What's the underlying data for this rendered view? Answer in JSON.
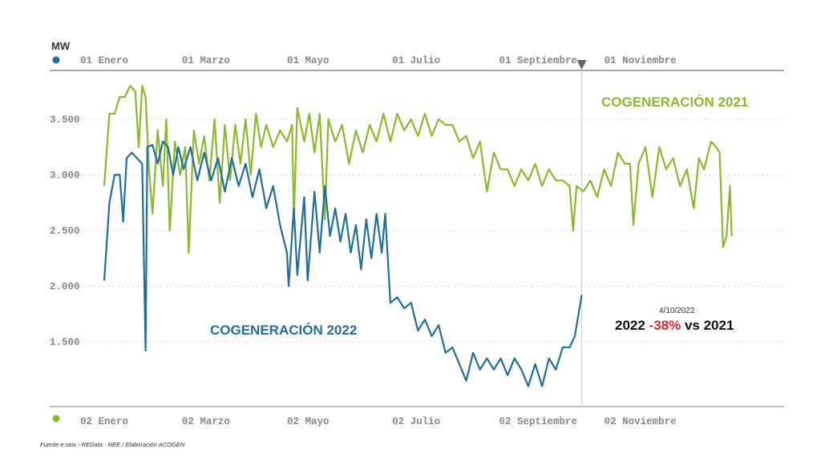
{
  "chart_data": {
    "type": "line",
    "ylabel": "MW",
    "ylim": [
      1000,
      3900
    ],
    "yticks": [
      1500,
      2000,
      2500,
      3000,
      3500
    ],
    "ytick_labels": [
      "1.500",
      "2.000",
      "2.500",
      "3.000",
      "3.500"
    ],
    "grid": true,
    "top_axis": {
      "series_color": "#1f6e9c",
      "tick_labels": [
        "01 Enero",
        "01 Marzo",
        "01 Mayo",
        "01 Julio",
        "01 Septiembre",
        "01 Noviembre"
      ],
      "tick_days": [
        0,
        59,
        120,
        181,
        243,
        304
      ]
    },
    "bottom_axis": {
      "series_color": "#8cb82b",
      "tick_labels": [
        "02 Enero",
        "02 Marzo",
        "02 Mayo",
        "02 Julio",
        "02 Septiembre",
        "02 Noviembre"
      ],
      "tick_days": [
        0,
        59,
        120,
        181,
        243,
        304
      ]
    },
    "marker": {
      "day": 277,
      "date": "4/10/2022",
      "text_before": "2022 ",
      "text_highlight": "-38%",
      "text_after": " vs 2021",
      "highlight_color": "#e0272d"
    },
    "series": [
      {
        "name": "COGENERACIÓN 2021",
        "color": "#8cb82b",
        "points": [
          [
            0,
            2900
          ],
          [
            3,
            3550
          ],
          [
            6,
            3550
          ],
          [
            9,
            3700
          ],
          [
            12,
            3700
          ],
          [
            15,
            3800
          ],
          [
            18,
            3750
          ],
          [
            20,
            3250
          ],
          [
            22,
            3800
          ],
          [
            24,
            3700
          ],
          [
            26,
            3050
          ],
          [
            28,
            2650
          ],
          [
            31,
            3400
          ],
          [
            34,
            2900
          ],
          [
            36,
            3500
          ],
          [
            38,
            2500
          ],
          [
            41,
            3300
          ],
          [
            44,
            3000
          ],
          [
            47,
            3250
          ],
          [
            49,
            2300
          ],
          [
            52,
            3400
          ],
          [
            55,
            3100
          ],
          [
            58,
            3350
          ],
          [
            61,
            2950
          ],
          [
            64,
            3500
          ],
          [
            67,
            2750
          ],
          [
            70,
            3450
          ],
          [
            73,
            2950
          ],
          [
            76,
            3450
          ],
          [
            79,
            3100
          ],
          [
            82,
            3500
          ],
          [
            85,
            3000
          ],
          [
            88,
            3550
          ],
          [
            91,
            3250
          ],
          [
            94,
            3450
          ],
          [
            98,
            3250
          ],
          [
            102,
            3400
          ],
          [
            106,
            3300
          ],
          [
            109,
            3450
          ],
          [
            110,
            2600
          ],
          [
            112,
            3600
          ],
          [
            116,
            3300
          ],
          [
            119,
            3550
          ],
          [
            122,
            3200
          ],
          [
            125,
            3550
          ],
          [
            128,
            2600
          ],
          [
            130,
            3500
          ],
          [
            134,
            3300
          ],
          [
            138,
            3450
          ],
          [
            142,
            3100
          ],
          [
            146,
            3400
          ],
          [
            150,
            3200
          ],
          [
            154,
            3450
          ],
          [
            158,
            3300
          ],
          [
            162,
            3550
          ],
          [
            166,
            3300
          ],
          [
            170,
            3550
          ],
          [
            174,
            3400
          ],
          [
            178,
            3500
          ],
          [
            182,
            3350
          ],
          [
            186,
            3550
          ],
          [
            190,
            3350
          ],
          [
            194,
            3500
          ],
          [
            198,
            3450
          ],
          [
            202,
            3450
          ],
          [
            206,
            3300
          ],
          [
            210,
            3350
          ],
          [
            214,
            3150
          ],
          [
            218,
            3300
          ],
          [
            222,
            2850
          ],
          [
            226,
            3200
          ],
          [
            230,
            3050
          ],
          [
            234,
            3050
          ],
          [
            238,
            2900
          ],
          [
            242,
            3050
          ],
          [
            246,
            2950
          ],
          [
            250,
            3100
          ],
          [
            254,
            2900
          ],
          [
            258,
            3050
          ],
          [
            262,
            2950
          ],
          [
            266,
            2950
          ],
          [
            270,
            2900
          ],
          [
            272,
            2500
          ],
          [
            274,
            2900
          ],
          [
            278,
            2850
          ],
          [
            282,
            2950
          ],
          [
            286,
            2800
          ],
          [
            290,
            3050
          ],
          [
            294,
            2900
          ],
          [
            298,
            3200
          ],
          [
            302,
            3100
          ],
          [
            305,
            3100
          ],
          [
            307,
            2550
          ],
          [
            310,
            3100
          ],
          [
            314,
            3250
          ],
          [
            318,
            2800
          ],
          [
            322,
            3250
          ],
          [
            326,
            3050
          ],
          [
            330,
            3150
          ],
          [
            334,
            2900
          ],
          [
            338,
            3050
          ],
          [
            342,
            2700
          ],
          [
            345,
            3150
          ],
          [
            348,
            3050
          ],
          [
            352,
            3300
          ],
          [
            355,
            3250
          ],
          [
            357,
            3200
          ],
          [
            359,
            2350
          ],
          [
            361,
            2450
          ],
          [
            363,
            2900
          ],
          [
            364,
            2450
          ]
        ]
      },
      {
        "name": "COGENERACIÓN 2022",
        "color": "#1f6e9c",
        "points": [
          [
            0,
            2050
          ],
          [
            3,
            2750
          ],
          [
            6,
            3000
          ],
          [
            9,
            3000
          ],
          [
            11,
            2580
          ],
          [
            13,
            3150
          ],
          [
            16,
            3200
          ],
          [
            19,
            3150
          ],
          [
            22,
            3100
          ],
          [
            24,
            1420
          ],
          [
            25,
            3250
          ],
          [
            28,
            3270
          ],
          [
            31,
            3100
          ],
          [
            34,
            3300
          ],
          [
            37,
            3250
          ],
          [
            40,
            3000
          ],
          [
            43,
            3250
          ],
          [
            46,
            3050
          ],
          [
            50,
            3250
          ],
          [
            54,
            2950
          ],
          [
            58,
            3200
          ],
          [
            62,
            2950
          ],
          [
            66,
            3150
          ],
          [
            70,
            2850
          ],
          [
            74,
            3150
          ],
          [
            78,
            2900
          ],
          [
            82,
            3100
          ],
          [
            86,
            2800
          ],
          [
            90,
            3050
          ],
          [
            94,
            2700
          ],
          [
            98,
            2900
          ],
          [
            102,
            2550
          ],
          [
            106,
            2300
          ],
          [
            107,
            2000
          ],
          [
            110,
            2700
          ],
          [
            112,
            2100
          ],
          [
            116,
            2800
          ],
          [
            118,
            2050
          ],
          [
            122,
            2850
          ],
          [
            125,
            2300
          ],
          [
            128,
            2900
          ],
          [
            131,
            2450
          ],
          [
            134,
            2700
          ],
          [
            137,
            2400
          ],
          [
            140,
            2650
          ],
          [
            143,
            2300
          ],
          [
            146,
            2550
          ],
          [
            149,
            2150
          ],
          [
            152,
            2600
          ],
          [
            155,
            2250
          ],
          [
            158,
            2650
          ],
          [
            161,
            2300
          ],
          [
            163,
            2650
          ],
          [
            166,
            1850
          ],
          [
            170,
            1900
          ],
          [
            174,
            1800
          ],
          [
            178,
            1850
          ],
          [
            182,
            1600
          ],
          [
            186,
            1700
          ],
          [
            190,
            1550
          ],
          [
            194,
            1650
          ],
          [
            198,
            1400
          ],
          [
            202,
            1450
          ],
          [
            206,
            1300
          ],
          [
            210,
            1150
          ],
          [
            214,
            1400
          ],
          [
            218,
            1250
          ],
          [
            222,
            1350
          ],
          [
            226,
            1250
          ],
          [
            230,
            1350
          ],
          [
            234,
            1200
          ],
          [
            238,
            1350
          ],
          [
            242,
            1250
          ],
          [
            246,
            1100
          ],
          [
            250,
            1300
          ],
          [
            254,
            1100
          ],
          [
            258,
            1350
          ],
          [
            262,
            1250
          ],
          [
            266,
            1450
          ],
          [
            270,
            1450
          ],
          [
            273,
            1550
          ],
          [
            277,
            1920
          ]
        ]
      }
    ]
  },
  "source": "Fuente e.sios - REData - REE / Elaboración ACOGEN"
}
